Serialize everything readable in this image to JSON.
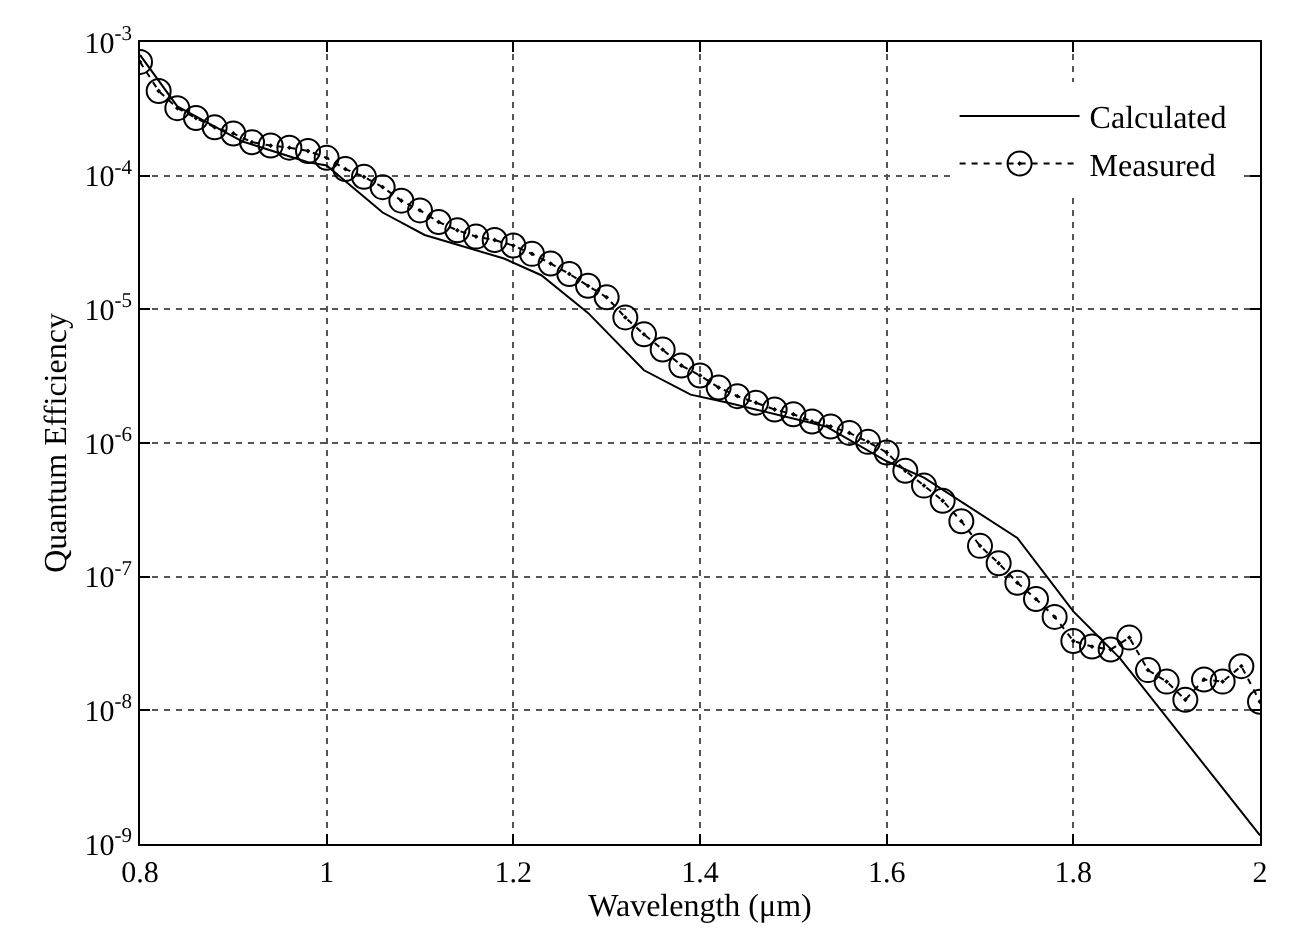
{
  "chart_data": {
    "type": "line",
    "xlabel": "Wavelength (μm)",
    "ylabel": "Quantum Efficiency",
    "log": "y",
    "xlim": [
      0.8,
      2
    ],
    "xticks": [
      0.8,
      1,
      1.2,
      1.4,
      1.6,
      1.8,
      2
    ],
    "ylim": [
      1e-09,
      0.001
    ],
    "yticks": [
      {
        "value": 1e-09,
        "label": "10$^{-9}$"
      },
      {
        "value": 1e-08,
        "label": "10$^{-8}$"
      },
      {
        "value": 1e-07,
        "label": "10$^{-7}$"
      },
      {
        "value": 1e-06,
        "label": "10$^{-6}$"
      },
      {
        "value": 1e-05,
        "label": "10$^{-5}$"
      },
      {
        "value": 0.0001,
        "label": "10$^{-4}$"
      },
      {
        "value": 0.001,
        "label": "10$^{-3}$"
      }
    ],
    "grid": true,
    "legend": "top right",
    "series": [
      {
        "name": "Calculated",
        "color": "#000000",
        "marker": "none",
        "line_style": "solid",
        "x": [
          0.8,
          0.84,
          0.91,
          0.98,
          1.0,
          1.06,
          1.105,
          1.19,
          1.23,
          1.28,
          1.34,
          1.39,
          1.43,
          1.535,
          1.6,
          1.64,
          1.74,
          1.8,
          1.85,
          2.0
        ],
        "values": [
          0.0008,
          0.00033,
          0.00018,
          0.000126,
          0.000119,
          5.3e-05,
          3.6e-05,
          2.4e-05,
          1.8e-05,
          9.4e-06,
          3.5e-06,
          2.3e-06,
          2e-06,
          1.33e-06,
          7.3e-07,
          5.5e-07,
          1.95e-07,
          5.5e-08,
          2.45e-08,
          1.16e-09
        ]
      },
      {
        "name": "Measured",
        "color": "#000000",
        "marker": "circle",
        "line_style": "dotted",
        "x": [
          0.8,
          0.82,
          0.84,
          0.86,
          0.88,
          0.9,
          0.92,
          0.94,
          0.96,
          0.98,
          1.0,
          1.02,
          1.04,
          1.06,
          1.08,
          1.1,
          1.12,
          1.14,
          1.16,
          1.18,
          1.2,
          1.22,
          1.24,
          1.26,
          1.28,
          1.3,
          1.32,
          1.34,
          1.36,
          1.38,
          1.4,
          1.42,
          1.44,
          1.46,
          1.48,
          1.5,
          1.52,
          1.54,
          1.56,
          1.58,
          1.6,
          1.62,
          1.64,
          1.66,
          1.68,
          1.7,
          1.72,
          1.74,
          1.76,
          1.78,
          1.8,
          1.82,
          1.84,
          1.86,
          1.88,
          1.9,
          1.92,
          1.94,
          1.96,
          1.98,
          2.0
        ],
        "values": [
          0.00071,
          0.00043,
          0.00032,
          0.00027,
          0.00023,
          0.000207,
          0.000178,
          0.000168,
          0.000162,
          0.000153,
          0.000136,
          0.000112,
          9.8e-05,
          8.2e-05,
          6.5e-05,
          5.5e-05,
          4.5e-05,
          3.9e-05,
          3.5e-05,
          3.3e-05,
          3e-05,
          2.6e-05,
          2.2e-05,
          1.84e-05,
          1.5e-05,
          1.23e-05,
          8.7e-06,
          6.5e-06,
          5e-06,
          3.8e-06,
          3.2e-06,
          2.6e-06,
          2.24e-06,
          2e-06,
          1.78e-06,
          1.64e-06,
          1.45e-06,
          1.33e-06,
          1.19e-06,
          1.02e-06,
          8.5e-07,
          6.2e-07,
          4.8e-07,
          3.7e-07,
          2.6e-07,
          1.7e-07,
          1.26e-07,
          9e-08,
          6.8e-08,
          5e-08,
          3.3e-08,
          3e-08,
          2.85e-08,
          3.5e-08,
          2e-08,
          1.64e-08,
          1.2e-08,
          1.7e-08,
          1.64e-08,
          2.14e-08,
          1.16e-08
        ]
      }
    ]
  }
}
